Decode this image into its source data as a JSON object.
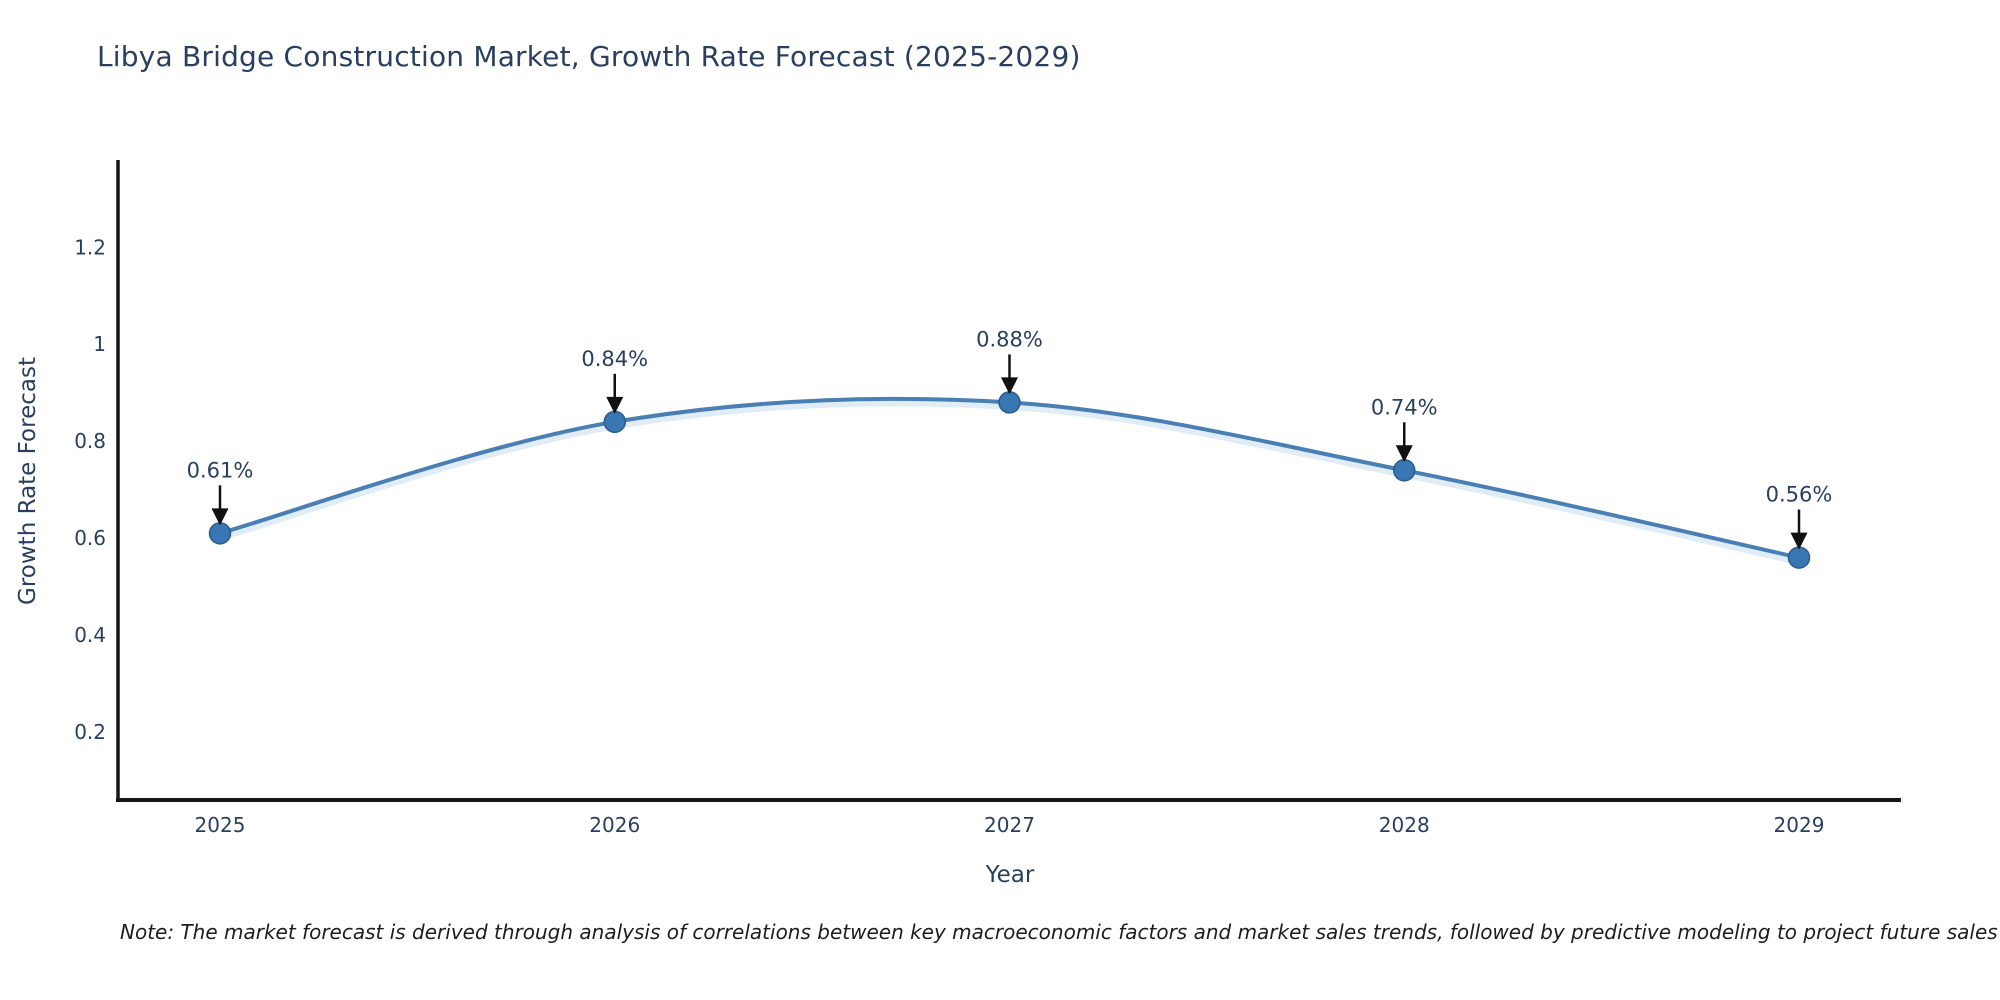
{
  "title": "Libya Bridge Construction Market, Growth Rate Forecast (2025-2029)",
  "note": "Note: The market forecast is derived through analysis of correlations between key macroeconomic factors and market sales trends, followed by predictive modeling to project future sales",
  "chart_data": {
    "type": "line",
    "title": "Libya Bridge Construction Market, Growth Rate Forecast (2025-2029)",
    "xlabel": "Year",
    "ylabel": "Growth Rate Forecast",
    "categories": [
      "2025",
      "2026",
      "2027",
      "2028",
      "2029"
    ],
    "x": [
      2025,
      2026,
      2027,
      2028,
      2029
    ],
    "series": [
      {
        "name": "Growth Rate Forecast",
        "values": [
          0.61,
          0.84,
          0.88,
          0.74,
          0.56
        ],
        "point_labels": [
          "0.61%",
          "0.84%",
          "0.88%",
          "0.74%",
          "0.56%"
        ]
      }
    ],
    "yticks": [
      0.2,
      0.4,
      0.6,
      0.8,
      1,
      1.2
    ],
    "ytick_labels": [
      "0.2",
      "0.4",
      "0.6",
      "0.8",
      "1",
      "1.2"
    ],
    "ylim": [
      0.06,
      1.38
    ],
    "grid": false,
    "legend": "none",
    "line_shape": "spline",
    "annotations": "value labels with down arrows above each point",
    "colors": {
      "line": "#4a7fb5",
      "line_glow": "#c7ddef",
      "marker_fill": "#3877b3",
      "marker_edge": "#2a5d8c",
      "axis_line": "#161616",
      "tick_text": "#2a3f5f",
      "annotation_text": "#2a3f5f",
      "annotation_arrow": "#111111",
      "title_text": "#2a3f5f",
      "background": "#ffffff"
    }
  }
}
